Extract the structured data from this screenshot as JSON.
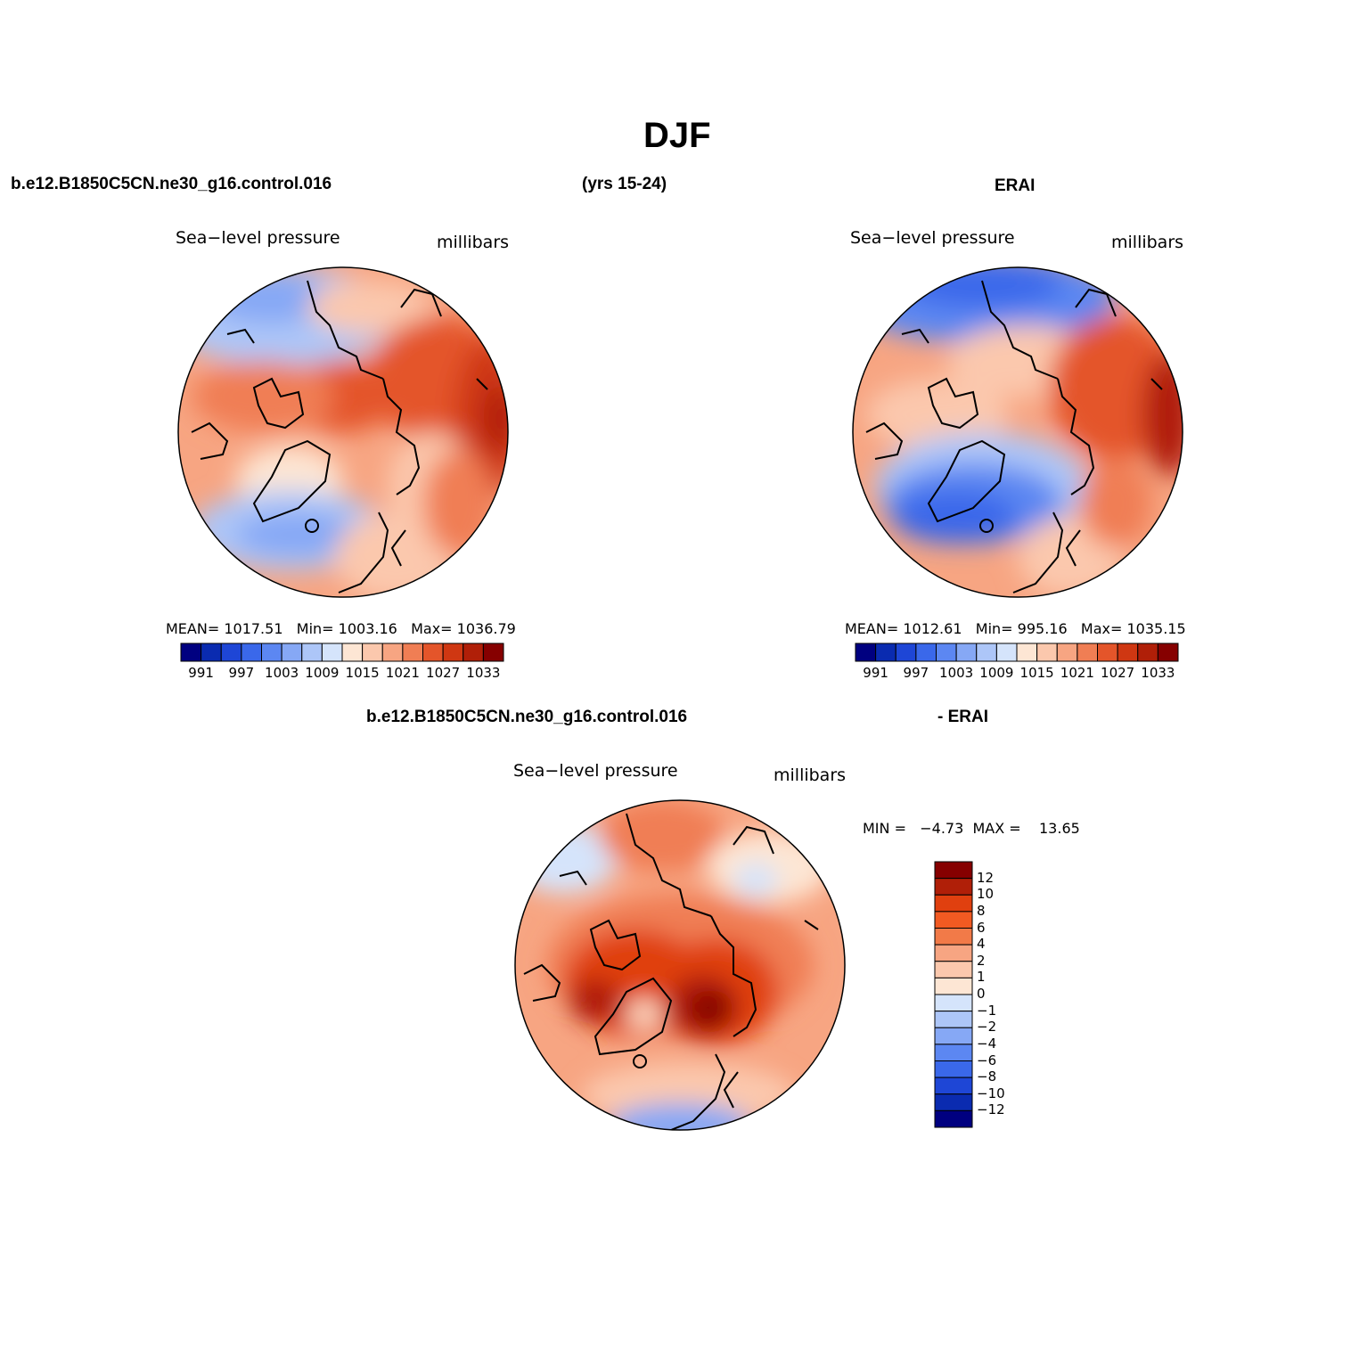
{
  "figure": {
    "title": "DJF",
    "case_name": "b.e12.B1850C5CN.ne30_g16.control.016",
    "years": "(yrs 15-24)",
    "obs_name": "ERAI",
    "diff_case_name": "b.e12.B1850C5CN.ne30_g16.control.016",
    "diff_obs_name": "- ERAI"
  },
  "panels": {
    "model": {
      "variable": "Sea−level pressure",
      "units": "millibars",
      "stats": {
        "mean_label": "MEAN=",
        "mean": "1017.51",
        "min_label": "Min=",
        "min": "1003.16",
        "max_label": "Max=",
        "max": "1036.79"
      }
    },
    "obs": {
      "variable": "Sea−level pressure",
      "units": "millibars",
      "stats": {
        "mean_label": "MEAN=",
        "mean": "1012.61",
        "min_label": "Min=",
        "min": "995.16",
        "max_label": "Max=",
        "max": "1035.15"
      }
    },
    "diff": {
      "variable": "Sea−level pressure",
      "units": "millibars",
      "minmax_text": "MIN =   −4.73  MAX =    13.65"
    }
  },
  "colorbars": {
    "abs": {
      "colors": [
        "#000080",
        "#0a2bb0",
        "#1e46d6",
        "#3a68ea",
        "#5c87f2",
        "#86a8f5",
        "#adc6f8",
        "#d5e4fb",
        "#fde6d4",
        "#fbc8ad",
        "#f7a582",
        "#f07e54",
        "#e4552a",
        "#cf3712",
        "#b01f08",
        "#860000"
      ],
      "labels": [
        "991",
        "997",
        "1003",
        "1009",
        "1015",
        "1021",
        "1027",
        "1033"
      ]
    },
    "diff": {
      "colors": [
        "#860000",
        "#b01f08",
        "#e0400f",
        "#f25a22",
        "#f27a48",
        "#f7a582",
        "#fbc8ad",
        "#fde6d4",
        "#d5e4fb",
        "#adc6f8",
        "#86a8f5",
        "#5c87f2",
        "#3a68ea",
        "#1e46d6",
        "#0a2bb0",
        "#000080"
      ],
      "labels": [
        "12",
        "10",
        "8",
        "6",
        "4",
        "2",
        "1",
        "0",
        "−1",
        "−2",
        "−4",
        "−6",
        "−8",
        "−10",
        "−12"
      ]
    }
  }
}
